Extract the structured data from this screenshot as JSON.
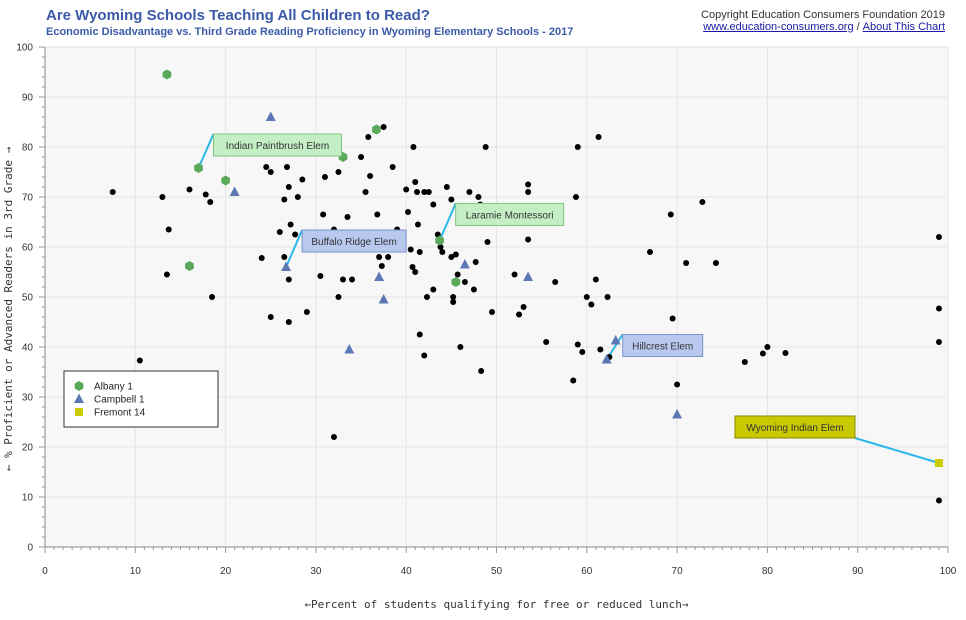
{
  "header": {
    "title": "Are Wyoming Schools Teaching All Children to Read?",
    "subtitle": "Economic Disadvantage vs. Third Grade Reading Proficiency in Wyoming Elementary Schools - 2017",
    "copyright": "Copyright Education Consumers Foundation 2019",
    "link_site": "www.education-consumers.org",
    "link_separator": "/",
    "link_about": "About This Chart"
  },
  "chart_data": {
    "type": "scatter",
    "xlabel": "←Percent of students qualifying for free or reduced lunch→",
    "ylabel": "← % Proficient or Advanced Readers in 3rd Grade →",
    "xlim": [
      0,
      100
    ],
    "ylim": [
      0,
      100
    ],
    "x_ticks": [
      0,
      10,
      20,
      30,
      40,
      50,
      60,
      70,
      80,
      90,
      100
    ],
    "y_ticks": [
      0,
      10,
      20,
      30,
      40,
      50,
      60,
      70,
      80,
      90,
      100
    ],
    "grid": true,
    "legend_position": "bottom-left",
    "colors": {
      "background": "#f7f7f7",
      "grid": "#e4e4e4",
      "other_schools": "#000000",
      "albany": "#5aa85a",
      "campbell": "#5b78b5",
      "fremont": "#cccc00",
      "leader": "#29b6e8"
    },
    "series": [
      {
        "name": "Albany 1",
        "marker": "hexagon",
        "color": "#5aa85a",
        "points": [
          [
            13.5,
            94.5
          ],
          [
            16,
            56.2
          ],
          [
            17,
            75.8
          ],
          [
            20,
            73.3
          ],
          [
            33,
            78
          ],
          [
            36.7,
            83.5
          ],
          [
            43.7,
            61.3
          ],
          [
            45.5,
            53
          ]
        ]
      },
      {
        "name": "Campbell 1",
        "marker": "triangle",
        "color": "#5b78b5",
        "points": [
          [
            21,
            71
          ],
          [
            25,
            86
          ],
          [
            26.7,
            56
          ],
          [
            33.7,
            39.5
          ],
          [
            35,
            61
          ],
          [
            37,
            54
          ],
          [
            37.5,
            49.5
          ],
          [
            46.5,
            56.5
          ],
          [
            49.3,
            67.5
          ],
          [
            53.5,
            54
          ],
          [
            62.2,
            37.5
          ],
          [
            63.2,
            41.3
          ],
          [
            70,
            26.5
          ]
        ]
      },
      {
        "name": "Fremont 14",
        "marker": "square",
        "color": "#cccc00",
        "points": [
          [
            99,
            16.8
          ]
        ]
      },
      {
        "name": "",
        "marker": "dot",
        "color": "#000000",
        "points": [
          [
            7.5,
            71
          ],
          [
            10.5,
            37.3
          ],
          [
            13,
            70
          ],
          [
            13.5,
            54.5
          ],
          [
            13.7,
            63.5
          ],
          [
            16,
            71.5
          ],
          [
            17.8,
            70.5
          ],
          [
            18.3,
            69
          ],
          [
            18.5,
            50
          ],
          [
            19.8,
            81.2
          ],
          [
            24,
            57.8
          ],
          [
            24.5,
            76
          ],
          [
            25,
            75
          ],
          [
            25,
            46
          ],
          [
            26,
            63
          ],
          [
            26.5,
            58
          ],
          [
            26.5,
            69.5
          ],
          [
            26.8,
            76
          ],
          [
            27,
            72
          ],
          [
            27,
            53.5
          ],
          [
            27,
            45
          ],
          [
            27.2,
            64.5
          ],
          [
            27.7,
            62.5
          ],
          [
            28,
            70
          ],
          [
            28.5,
            73.5
          ],
          [
            29,
            47
          ],
          [
            30.5,
            54.2
          ],
          [
            30.8,
            66.5
          ],
          [
            31,
            74
          ],
          [
            32,
            63.5
          ],
          [
            32.5,
            75
          ],
          [
            32,
            22
          ],
          [
            32.5,
            50
          ],
          [
            33,
            53.5
          ],
          [
            33.5,
            66
          ],
          [
            34,
            53.5
          ],
          [
            35,
            78
          ],
          [
            35.5,
            71
          ],
          [
            35.8,
            82
          ],
          [
            36,
            74.2
          ],
          [
            36.5,
            62.5
          ],
          [
            36.8,
            66.5
          ],
          [
            37.3,
            56.2
          ],
          [
            37,
            58
          ],
          [
            37.5,
            84
          ],
          [
            38,
            58
          ],
          [
            38.5,
            76
          ],
          [
            39,
            63.5
          ],
          [
            40,
            71.5
          ],
          [
            40.2,
            67
          ],
          [
            40.5,
            59.5
          ],
          [
            40.7,
            56
          ],
          [
            40.8,
            80
          ],
          [
            41,
            73
          ],
          [
            41.2,
            71
          ],
          [
            41.3,
            64.5
          ],
          [
            41,
            55
          ],
          [
            41.5,
            59
          ],
          [
            41.5,
            42.5
          ],
          [
            42,
            71
          ],
          [
            42,
            38.3
          ],
          [
            42.3,
            50
          ],
          [
            42.5,
            71
          ],
          [
            43,
            68.5
          ],
          [
            43,
            51.5
          ],
          [
            43.5,
            62.5
          ],
          [
            43.8,
            60
          ],
          [
            44,
            59
          ],
          [
            44.5,
            72
          ],
          [
            45,
            69.5
          ],
          [
            45.5,
            58.5
          ],
          [
            45.7,
            54.5
          ],
          [
            45,
            58
          ],
          [
            45.2,
            50
          ],
          [
            45.2,
            49
          ],
          [
            46,
            40
          ],
          [
            46.2,
            68
          ],
          [
            46.3,
            66.5
          ],
          [
            46.5,
            53
          ],
          [
            47,
            71
          ],
          [
            47.5,
            51.5
          ],
          [
            47.7,
            57
          ],
          [
            48,
            70
          ],
          [
            48.2,
            68.5
          ],
          [
            48.3,
            35.2
          ],
          [
            48.8,
            80
          ],
          [
            49,
            61
          ],
          [
            49.5,
            47
          ],
          [
            51,
            67
          ],
          [
            52,
            54.5
          ],
          [
            52.5,
            46.5
          ],
          [
            53,
            48
          ],
          [
            53.5,
            72.5
          ],
          [
            53.5,
            71
          ],
          [
            53.5,
            61.5
          ],
          [
            55.5,
            41
          ],
          [
            56.5,
            53
          ],
          [
            58.5,
            33.3
          ],
          [
            58.8,
            70
          ],
          [
            59,
            80
          ],
          [
            59,
            40.5
          ],
          [
            59.5,
            39
          ],
          [
            60,
            50
          ],
          [
            60.5,
            48.5
          ],
          [
            61,
            53.5
          ],
          [
            61.3,
            82
          ],
          [
            61.5,
            39.5
          ],
          [
            62.3,
            50
          ],
          [
            62.5,
            38
          ],
          [
            67,
            59
          ],
          [
            69.3,
            66.5
          ],
          [
            69.5,
            45.7
          ],
          [
            70,
            32.5
          ],
          [
            71,
            56.8
          ],
          [
            72.8,
            69
          ],
          [
            74.3,
            56.8
          ],
          [
            77.5,
            37
          ],
          [
            79.5,
            38.7
          ],
          [
            80,
            40
          ],
          [
            82,
            38.8
          ],
          [
            99,
            62
          ],
          [
            99,
            47.7
          ],
          [
            99,
            41
          ],
          [
            99,
            9.3
          ]
        ]
      }
    ],
    "callouts": [
      {
        "label": "Indian Paintbrush Elem",
        "style": "green",
        "point": [
          17,
          75.8
        ]
      },
      {
        "label": "Buffalo Ridge Elem",
        "style": "blue",
        "point": [
          26.7,
          56
        ]
      },
      {
        "label": "Laramie Montessori",
        "style": "green",
        "point": [
          43.7,
          61.3
        ]
      },
      {
        "label": "Hillcrest Elem",
        "style": "blue",
        "point": [
          62.2,
          37.5
        ]
      },
      {
        "label": "Wyoming Indian Elem",
        "style": "yellow",
        "point": [
          99,
          16.8
        ]
      }
    ]
  }
}
